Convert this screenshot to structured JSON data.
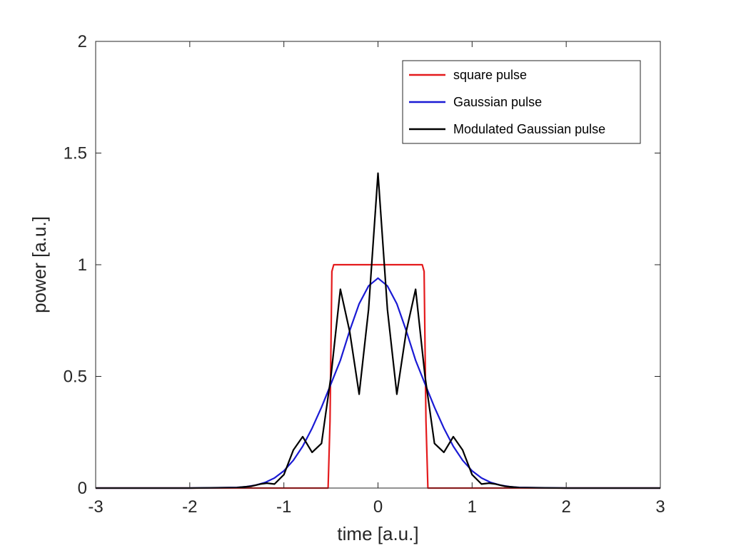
{
  "chart_data": {
    "type": "line",
    "title": "",
    "xlabel": "time [a.u.]",
    "ylabel": "power [a.u.]",
    "xlim": [
      -3,
      3
    ],
    "ylim": [
      0,
      2
    ],
    "xticks": [
      "-3",
      "-2",
      "-1",
      "0",
      "1",
      "2",
      "3"
    ],
    "yticks": [
      "0",
      "0.5",
      "1",
      "1.5",
      "2"
    ],
    "grid": false,
    "legend_position": "top-right",
    "series": [
      {
        "name": "square pulse",
        "color": "#e41a1c",
        "x": [
          -3,
          -0.53,
          -0.51,
          -0.49,
          -0.47,
          0.47,
          0.49,
          0.51,
          0.53,
          3
        ],
        "y": [
          0,
          0,
          0.3,
          0.97,
          1,
          1,
          0.97,
          0.3,
          0,
          0
        ]
      },
      {
        "name": "Gaussian pulse",
        "color": "#1a1ad4",
        "x": [
          -3,
          -2,
          -1.5,
          -1.4,
          -1.3,
          -1.2,
          -1.1,
          -1.0,
          -0.9,
          -0.8,
          -0.7,
          -0.6,
          -0.5,
          -0.4,
          -0.3,
          -0.2,
          -0.1,
          0,
          0.1,
          0.2,
          0.3,
          0.4,
          0.5,
          0.6,
          0.7,
          0.8,
          0.9,
          1.0,
          1.1,
          1.2,
          1.3,
          1.4,
          1.5,
          2,
          3
        ],
        "y": [
          0,
          0,
          0.003,
          0.006,
          0.013,
          0.025,
          0.045,
          0.077,
          0.124,
          0.187,
          0.268,
          0.362,
          0.466,
          0.572,
          0.705,
          0.825,
          0.905,
          0.94,
          0.905,
          0.825,
          0.705,
          0.572,
          0.466,
          0.362,
          0.268,
          0.187,
          0.124,
          0.077,
          0.045,
          0.025,
          0.013,
          0.006,
          0.003,
          0,
          0
        ]
      },
      {
        "name": "Modulated Gaussian pulse",
        "color": "#000000",
        "x": [
          -3,
          -2,
          -1.5,
          -1.35,
          -1.25,
          -1.18,
          -1.1,
          -1.0,
          -0.9,
          -0.8,
          -0.7,
          -0.6,
          -0.5,
          -0.4,
          -0.3,
          -0.2,
          -0.1,
          0,
          0.1,
          0.2,
          0.3,
          0.4,
          0.5,
          0.6,
          0.7,
          0.8,
          0.9,
          1.0,
          1.1,
          1.18,
          1.25,
          1.35,
          1.5,
          2,
          3
        ],
        "y": [
          0,
          0,
          0.002,
          0.008,
          0.018,
          0.022,
          0.018,
          0.06,
          0.17,
          0.23,
          0.16,
          0.2,
          0.5,
          0.89,
          0.7,
          0.42,
          0.8,
          1.41,
          0.8,
          0.42,
          0.7,
          0.89,
          0.5,
          0.2,
          0.16,
          0.23,
          0.17,
          0.06,
          0.018,
          0.022,
          0.018,
          0.008,
          0.002,
          0,
          0
        ]
      }
    ]
  }
}
